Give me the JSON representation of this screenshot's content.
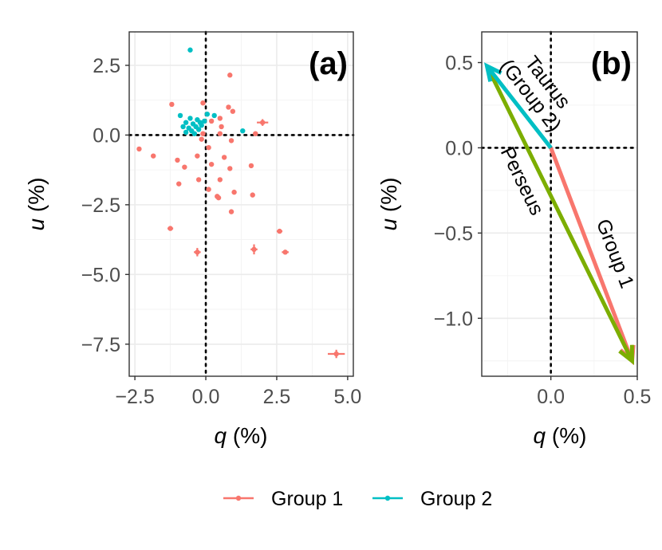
{
  "chart_data": [
    {
      "panel": "(a)",
      "type": "scatter",
      "xlabel_var": "q",
      "xlabel_unit": " (%)",
      "ylabel_var": "u",
      "ylabel_unit": " (%)",
      "xlim": [
        -2.7,
        5.2
      ],
      "ylim": [
        -8.65,
        3.7
      ],
      "xticks": [
        -2.5,
        0,
        2.5,
        5
      ],
      "xtick_labels": [
        "−2.5",
        "0.0",
        "2.5",
        "5.0"
      ],
      "yticks": [
        2.5,
        0,
        -2.5,
        -5,
        -7.5
      ],
      "ytick_labels": [
        "2.5",
        "0.0",
        "−2.5",
        "−5.0",
        "−7.5"
      ],
      "reference_lines": {
        "x": 0,
        "y": 0
      },
      "series": [
        {
          "name": "Group 1",
          "color": "#F8766D",
          "points": [
            {
              "x": 0.85,
              "y": 2.15
            },
            {
              "x": -1.2,
              "y": 1.1
            },
            {
              "x": 0.8,
              "y": 1.0
            },
            {
              "x": 0.95,
              "y": 0.85
            },
            {
              "x": -0.1,
              "y": 1.15
            },
            {
              "x": 0.5,
              "y": 0.6
            },
            {
              "x": 0.2,
              "y": 0.5
            },
            {
              "x": 0.55,
              "y": 0.3
            },
            {
              "x": 2.0,
              "y": 0.45,
              "ex": 0.2,
              "ey": 0.12
            },
            {
              "x": 1.75,
              "y": 0.05
            },
            {
              "x": 0.5,
              "y": 0.05
            },
            {
              "x": -0.1,
              "y": 0.05
            },
            {
              "x": -0.15,
              "y": -0.15
            },
            {
              "x": 0.1,
              "y": -0.45
            },
            {
              "x": 0.9,
              "y": -0.2
            },
            {
              "x": -2.35,
              "y": -0.5
            },
            {
              "x": -1.85,
              "y": -0.75
            },
            {
              "x": -0.3,
              "y": -0.75
            },
            {
              "x": -1.0,
              "y": -0.9
            },
            {
              "x": 0.65,
              "y": -0.8
            },
            {
              "x": -0.75,
              "y": -1.15
            },
            {
              "x": 0.2,
              "y": -1.05
            },
            {
              "x": 0.85,
              "y": -1.2
            },
            {
              "x": 1.6,
              "y": -1.1
            },
            {
              "x": -0.95,
              "y": -1.75
            },
            {
              "x": 0.5,
              "y": -1.6
            },
            {
              "x": -0.25,
              "y": -1.6
            },
            {
              "x": 0.1,
              "y": -1.95
            },
            {
              "x": 1.0,
              "y": -2.05
            },
            {
              "x": 1.65,
              "y": -2.15
            },
            {
              "x": 0.45,
              "y": -2.25
            },
            {
              "x": 0.4,
              "y": -2.2
            },
            {
              "x": 0.9,
              "y": -2.75
            },
            {
              "x": -1.25,
              "y": -3.35,
              "ex": 0.1,
              "ey": 0.05
            },
            {
              "x": 2.6,
              "y": -3.45,
              "ex": 0.1,
              "ey": 0.08
            },
            {
              "x": -0.3,
              "y": -4.2,
              "ex": 0.12,
              "ey": 0.15
            },
            {
              "x": 1.7,
              "y": -4.1,
              "ex": 0.12,
              "ey": 0.18
            },
            {
              "x": 2.8,
              "y": -4.2,
              "ex": 0.12,
              "ey": 0.08
            },
            {
              "x": 4.6,
              "y": -7.85,
              "ex": 0.3,
              "ey": 0.15
            }
          ]
        },
        {
          "name": "Group 2",
          "color": "#00BFC4",
          "points": [
            {
              "x": -0.55,
              "y": 3.05
            },
            {
              "x": -0.9,
              "y": 0.7
            },
            {
              "x": -0.55,
              "y": 0.6
            },
            {
              "x": -0.3,
              "y": 0.55
            },
            {
              "x": 0.05,
              "y": 0.75
            },
            {
              "x": 0.3,
              "y": 0.7
            },
            {
              "x": -0.7,
              "y": 0.45
            },
            {
              "x": -0.45,
              "y": 0.4
            },
            {
              "x": -0.2,
              "y": 0.45
            },
            {
              "x": -0.05,
              "y": 0.5
            },
            {
              "x": -0.8,
              "y": 0.3
            },
            {
              "x": -0.6,
              "y": 0.25
            },
            {
              "x": -0.35,
              "y": 0.3
            },
            {
              "x": -0.15,
              "y": 0.35
            },
            {
              "x": -0.5,
              "y": 0.15
            },
            {
              "x": -0.25,
              "y": 0.2
            },
            {
              "x": -0.7,
              "y": 0.1
            },
            {
              "x": -0.4,
              "y": 0.05
            },
            {
              "x": 1.3,
              "y": 0.15
            }
          ]
        }
      ]
    },
    {
      "panel": "(b)",
      "type": "vector",
      "xlabel_var": "q",
      "xlabel_unit": " (%)",
      "ylabel_var": "u",
      "ylabel_unit": " (%)",
      "xlim": [
        -0.4,
        0.5
      ],
      "ylim": [
        -1.34,
        0.68
      ],
      "xticks": [
        0,
        0.5
      ],
      "xtick_labels": [
        "0.0",
        "0.5"
      ],
      "yticks": [
        0.5,
        0,
        -0.5,
        -1
      ],
      "ytick_labels": [
        "0.5",
        "0.0",
        "−0.5",
        "−1.0"
      ],
      "reference_lines": {
        "x": 0,
        "y": 0
      },
      "vectors": [
        {
          "name": "Group 1",
          "from": [
            0,
            0
          ],
          "to": [
            0.47,
            -1.25
          ],
          "color": "#F8766D",
          "label": "Group 1"
        },
        {
          "name": "Group 2",
          "from": [
            0,
            0
          ],
          "to": [
            -0.37,
            0.48
          ],
          "color": "#00BFC4",
          "label_lines": [
            "Taurus",
            "(Group 2)"
          ]
        },
        {
          "name": "Perseus",
          "from": [
            -0.37,
            0.48
          ],
          "to": [
            0.47,
            -1.25
          ],
          "color": "#7CAE00",
          "label": "Perseus"
        }
      ]
    }
  ],
  "legend": {
    "position": "bottom",
    "items": [
      {
        "label": "Group 1",
        "color": "#F8766D"
      },
      {
        "label": "Group 2",
        "color": "#00BFC4"
      }
    ]
  }
}
